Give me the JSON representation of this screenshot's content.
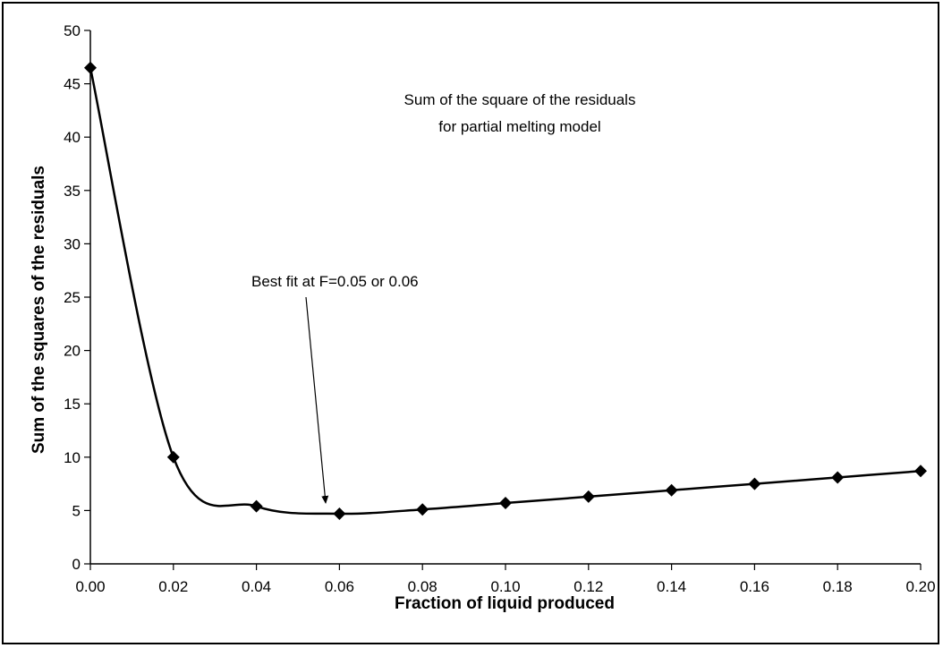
{
  "chart_data": {
    "type": "line",
    "title": "",
    "xlabel": "Fraction of liquid produced",
    "ylabel": "Sum of the squares of the residuals",
    "xlim": [
      0,
      0.2
    ],
    "ylim": [
      0,
      50
    ],
    "x_ticks": [
      "0.00",
      "0.02",
      "0.04",
      "0.06",
      "0.08",
      "0.10",
      "0.12",
      "0.14",
      "0.16",
      "0.18",
      "0.20"
    ],
    "y_ticks": [
      "0",
      "5",
      "10",
      "15",
      "20",
      "25",
      "30",
      "35",
      "40",
      "45",
      "50"
    ],
    "grid": false,
    "marker": "diamond",
    "smooth": true,
    "series": [
      {
        "x": [
          0.0,
          0.02,
          0.04,
          0.06,
          0.08,
          0.1,
          0.12,
          0.14,
          0.16,
          0.18,
          0.2
        ],
        "y": [
          46.5,
          10.0,
          5.4,
          4.7,
          5.1,
          5.7,
          6.3,
          6.9,
          7.5,
          8.1,
          8.7
        ]
      }
    ],
    "annotations": [
      {
        "lines": [
          "Sum of the square of the residuals",
          "for partial melting model"
        ]
      },
      {
        "text": "Best fit at F=0.05 or 0.06",
        "arrow_to": [
          0.056,
          4.6
        ]
      }
    ]
  }
}
